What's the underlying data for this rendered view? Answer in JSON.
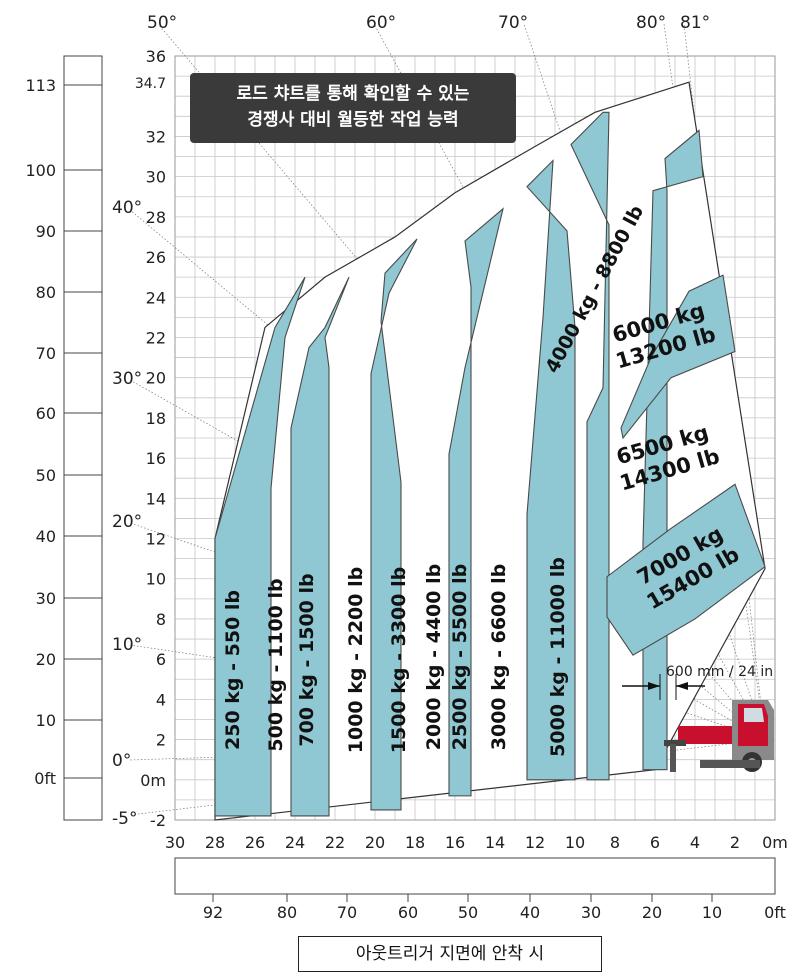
{
  "caption": {
    "line1": "로드 챠트를 통해 확인할 수 있는",
    "line2": "경쟁사 대비 월등한 작업 능력"
  },
  "footer_label": "아웃트리거 지면에 안착 시",
  "clearance_label": "600 mm / 24 in",
  "colors": {
    "band_fill": "#8fc8d3",
    "band_stroke": "#4a4a4a",
    "grid": "#c7c7c7",
    "caption_bg": "#3a3a3a"
  },
  "chart_data": {
    "type": "area",
    "title": "",
    "xlabel": "",
    "ylabel": "",
    "x_axis_m": {
      "range": [
        0,
        30
      ],
      "ticks": [
        30,
        28,
        26,
        24,
        22,
        20,
        18,
        16,
        14,
        12,
        10,
        8,
        6,
        4,
        2
      ],
      "end_label": "0m"
    },
    "x_axis_ft": {
      "ticks": [
        "92",
        "80",
        "70",
        "60",
        "50",
        "40",
        "30",
        "20",
        "10"
      ],
      "end_label": "0ft"
    },
    "y_axis_m": {
      "range": [
        -2,
        36
      ],
      "ticks": [
        "36",
        "34.7",
        "32",
        "30",
        "28",
        "26",
        "24",
        "22",
        "20",
        "18",
        "16",
        "14",
        "12",
        "10",
        "8",
        "6",
        "4",
        "2",
        "0m",
        "-2"
      ]
    },
    "y_axis_ft": {
      "ticks": [
        "113",
        "100",
        "90",
        "80",
        "70",
        "60",
        "50",
        "40",
        "30",
        "20",
        "10",
        "0ft"
      ]
    },
    "boom_angles": [
      "50°",
      "60°",
      "70°",
      "80°",
      "81°",
      "40°",
      "30°",
      "20°",
      "10°",
      "0°",
      "-5°"
    ],
    "envelope": [
      [
        28,
        -2
      ],
      [
        28,
        12
      ],
      [
        25.5,
        22.5
      ],
      [
        22.5,
        25
      ],
      [
        19,
        27
      ],
      [
        16,
        29.2
      ],
      [
        12,
        31.5
      ],
      [
        9,
        33.2
      ],
      [
        4.3,
        34.7
      ],
      [
        0.5,
        10.5
      ],
      [
        6,
        0.5
      ]
    ],
    "load_bands": [
      {
        "label": "250 kg - 550 lb",
        "polygon": [
          [
            28,
            -1.8
          ],
          [
            28,
            12
          ],
          [
            25,
            22.5
          ],
          [
            23.5,
            25
          ],
          [
            24.5,
            22
          ],
          [
            25.2,
            14.5
          ],
          [
            25.2,
            -1.8
          ]
        ]
      },
      {
        "label": "500 kg - 1100 lb",
        "polygon": [
          [
            24.2,
            -1.8
          ],
          [
            24.2,
            17.5
          ],
          [
            23.3,
            21.5
          ],
          [
            22.5,
            22.5
          ],
          [
            21.3,
            25
          ],
          [
            22.5,
            22
          ],
          [
            22.3,
            20.5
          ],
          [
            22.3,
            -1.8
          ]
        ]
      },
      {
        "label": "700 kg - 1500 lb",
        "polygon": [
          [
            20.2,
            -1.5
          ],
          [
            20.2,
            20.2
          ],
          [
            19.3,
            24.2
          ],
          [
            17.9,
            26.9
          ],
          [
            19.5,
            25.2
          ],
          [
            19.7,
            22.8
          ],
          [
            18.7,
            14.8
          ],
          [
            18.7,
            -1.5
          ]
        ]
      },
      {
        "label": "1000 kg - 2200 lb",
        "polygon": [
          [
            16.3,
            -0.8
          ],
          [
            16.3,
            16.2
          ],
          [
            15.5,
            20.5
          ],
          [
            13.6,
            28.4
          ],
          [
            15.5,
            26.8
          ],
          [
            15.2,
            24.5
          ],
          [
            15.2,
            -0.8
          ]
        ]
      },
      {
        "label": "1500 kg - 3300 lb",
        "polygon": [
          [
            12.4,
            0
          ],
          [
            12.4,
            13.2
          ],
          [
            11.6,
            23
          ],
          [
            11.1,
            30.8
          ],
          [
            12.4,
            29.5
          ],
          [
            10.4,
            27.3
          ],
          [
            10,
            22.5
          ],
          [
            10,
            17.5
          ],
          [
            10,
            0
          ]
        ]
      },
      {
        "label": "2000 kg - 4400 lb",
        "polygon": [
          [
            9.4,
            0
          ],
          [
            9.4,
            17.8
          ],
          [
            8.6,
            19.5
          ],
          [
            8.3,
            33.2
          ],
          [
            8.6,
            33.2
          ],
          [
            10.2,
            31.6
          ],
          [
            8.3,
            27.6
          ],
          [
            8.3,
            0
          ]
        ]
      },
      {
        "label": "4000 kg - 8800 lb",
        "polygon": [
          [
            5.4,
            0.5
          ],
          [
            5.4,
            29.3
          ],
          [
            5.5,
            30.9
          ],
          [
            3.8,
            32.3
          ],
          [
            3.6,
            30
          ],
          [
            6.1,
            29.3
          ],
          [
            6.6,
            11.8
          ],
          [
            6.6,
            0.5
          ]
        ]
      },
      {
        "label": "6000 kg\n13200 lb",
        "polygon": [
          [
            7.7,
            17.5
          ],
          [
            6.2,
            21
          ],
          [
            4.3,
            24.3
          ],
          [
            2.6,
            25.1
          ],
          [
            2,
            21.3
          ],
          [
            5.2,
            20
          ],
          [
            7.6,
            17
          ]
        ]
      },
      {
        "label": "7000 kg\n15400 lb",
        "polygon": [
          [
            8.4,
            8.1
          ],
          [
            8.4,
            10.1
          ],
          [
            5.2,
            12.5
          ],
          [
            2,
            14.7
          ],
          [
            0.5,
            10.6
          ],
          [
            4,
            8
          ],
          [
            7.1,
            6.2
          ]
        ]
      }
    ],
    "white_zone_labels": [
      "2500 kg - 5500 lb",
      "3000 kg - 6600 lb",
      "5000 kg - 11000 lb",
      "6500 kg\n14300 lb"
    ]
  }
}
